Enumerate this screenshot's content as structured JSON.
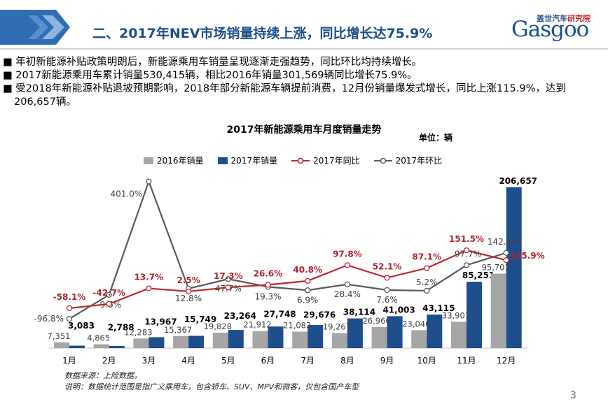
{
  "header": {
    "title": "二、2017年NEV市场销量持续上涨，同比增长达75.9%",
    "logo_cn_a": "盖世汽车",
    "logo_cn_b": "研究院",
    "logo_en": "Gasgoo"
  },
  "bullets": [
    "■ 年初新能源补贴政策明朗后，新能源乘用车销量呈现逐渐走强趋势，同比环比均持续增长。",
    "■ 2017新能源乘用车累计销量530,415辆，相比2016年销量301,569辆同比增长75.9%。",
    "■ 受2018年新能源补贴退坡预期影响，2018年部分新能源车辆提前消费，12月份销量爆发式增长，同比上涨115.9%，达到206,657辆。"
  ],
  "chart_data": {
    "type": "bar",
    "title": "2017年新能源乘用车月度销量走势",
    "unit": "单位：辆",
    "categories": [
      "1月",
      "2月",
      "3月",
      "4月",
      "5月",
      "6月",
      "7月",
      "8月",
      "9月",
      "10月",
      "11月",
      "12月"
    ],
    "series": [
      {
        "name": "2016年销量",
        "type": "bar",
        "color": "#a6a6a6",
        "values": [
          7351,
          4865,
          12283,
          15367,
          19828,
          21912,
          21082,
          19267,
          26966,
          23046,
          33901,
          95701
        ],
        "labels": [
          "7,351",
          "4,865",
          "12,283",
          "15,367",
          "19,828",
          "21,912",
          "21,082",
          "19,267",
          "26,966",
          "23,046",
          "33,901",
          "95,701"
        ]
      },
      {
        "name": "2017年销量",
        "type": "bar",
        "color": "#1f4e8c",
        "values": [
          3083,
          2788,
          13967,
          15749,
          23264,
          27748,
          29676,
          38114,
          41003,
          43115,
          85251,
          206657
        ],
        "labels": [
          "3,083",
          "2,788",
          "13,967",
          "15,749",
          "23,264",
          "27,748",
          "29,676",
          "38,114",
          "41,003",
          "43,115",
          "85,251",
          "206,657"
        ]
      },
      {
        "name": "2017年同比",
        "type": "line",
        "color": "#c0282d",
        "values": [
          -58.1,
          -42.7,
          13.7,
          2.5,
          17.3,
          26.6,
          40.8,
          97.8,
          52.1,
          87.1,
          151.5,
          115.9
        ],
        "labels": [
          "-58.1%",
          "-42.7%",
          "13.7%",
          "2.5%",
          "17.3%",
          "26.6%",
          "40.8%",
          "97.8%",
          "52.1%",
          "87.1%",
          "151.5%",
          "115.9%"
        ]
      },
      {
        "name": "2017年环比",
        "type": "line",
        "color": "#595959",
        "values": [
          -96.8,
          -9.6,
          401.0,
          12.8,
          47.7,
          19.3,
          6.9,
          28.4,
          7.6,
          5.2,
          97.7,
          142.4
        ],
        "labels": [
          "-96.8%",
          "-9.6%",
          "401.0%",
          "12.8%",
          "47.7%",
          "19.3%",
          "6.9%",
          "28.4%",
          "7.6%",
          "5.2%",
          "97.7%",
          "142.4%"
        ]
      }
    ]
  },
  "footnote": [
    "数据来源：上险数据，",
    "说明：数据统计范围是指广义乘用车，包含轿车、SUV、MPV和微客，仅包含国产车型"
  ],
  "page_number": "3"
}
